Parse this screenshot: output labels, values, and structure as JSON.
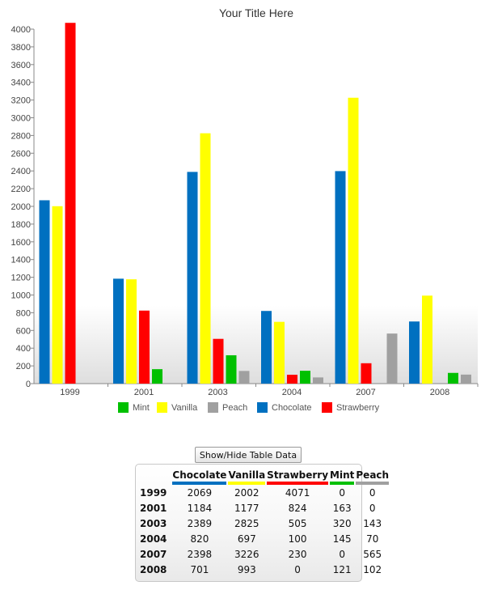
{
  "chart_data": {
    "type": "bar",
    "title": "Your Title Here",
    "categories": [
      "1999",
      "2001",
      "2003",
      "2004",
      "2007",
      "2008"
    ],
    "series": [
      {
        "name": "Chocolate",
        "color": "#0070c0",
        "values": [
          2069,
          1184,
          2389,
          820,
          2398,
          701
        ]
      },
      {
        "name": "Vanilla",
        "color": "#ffff00",
        "values": [
          2002,
          1177,
          2825,
          697,
          3226,
          993
        ]
      },
      {
        "name": "Strawberry",
        "color": "#ff0000",
        "values": [
          4071,
          824,
          505,
          100,
          230,
          0
        ]
      },
      {
        "name": "Mint",
        "color": "#00c000",
        "values": [
          0,
          163,
          320,
          145,
          0,
          121
        ]
      },
      {
        "name": "Peach",
        "color": "#a0a0a0",
        "values": [
          0,
          0,
          143,
          70,
          565,
          102
        ]
      }
    ],
    "legend_order": [
      "Mint",
      "Vanilla",
      "Peach",
      "Chocolate",
      "Strawberry"
    ],
    "ylim": [
      0,
      4000
    ],
    "yticks": [
      "0",
      "200",
      "400",
      "600",
      "800",
      "1000",
      "1200",
      "1400",
      "1600",
      "1800",
      "2000",
      "2200",
      "2400",
      "2600",
      "2800",
      "3000",
      "3200",
      "3400",
      "3600",
      "3800",
      "4000"
    ],
    "legend_position": "bottom",
    "grid": false
  },
  "controls": {
    "toggle_button_label": "Show/Hide Table Data"
  },
  "table": {
    "columns": [
      "Chocolate",
      "Vanilla",
      "Strawberry",
      "Mint",
      "Peach"
    ],
    "rows": [
      {
        "label": "1999",
        "cells": [
          "2069",
          "2002",
          "4071",
          "0",
          "0"
        ]
      },
      {
        "label": "2001",
        "cells": [
          "1184",
          "1177",
          "824",
          "163",
          "0"
        ]
      },
      {
        "label": "2003",
        "cells": [
          "2389",
          "2825",
          "505",
          "320",
          "143"
        ]
      },
      {
        "label": "2004",
        "cells": [
          "820",
          "697",
          "100",
          "145",
          "70"
        ]
      },
      {
        "label": "2007",
        "cells": [
          "2398",
          "3226",
          "230",
          "0",
          "565"
        ]
      },
      {
        "label": "2008",
        "cells": [
          "701",
          "993",
          "0",
          "121",
          "102"
        ]
      }
    ]
  }
}
